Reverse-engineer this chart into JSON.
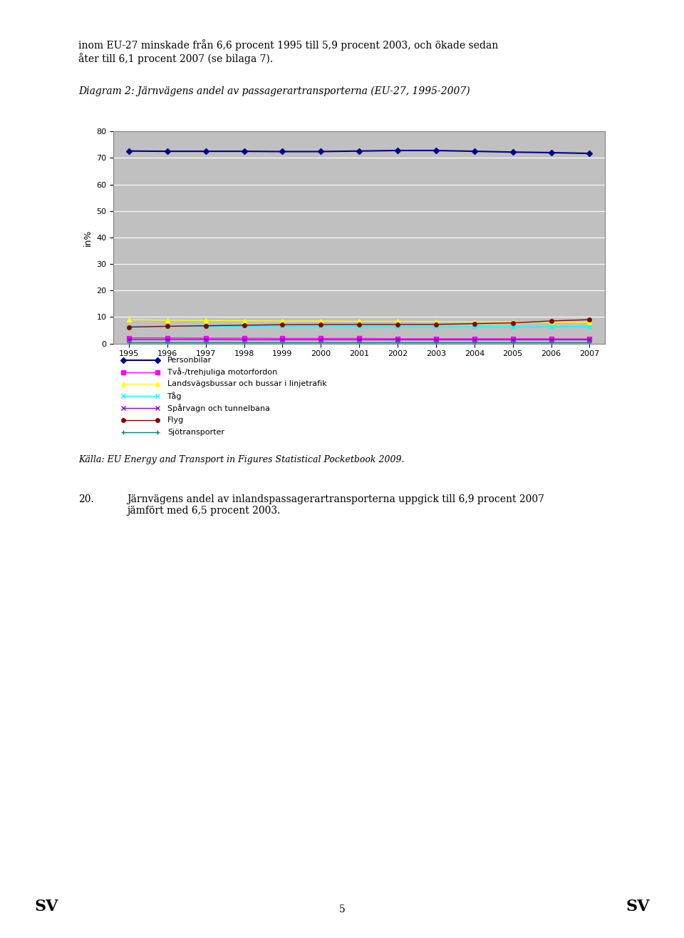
{
  "title": "Diagram 2: Järnvägens andel av passagerartransporterna (EU-27, 1995-2007)",
  "ylabel": "in%",
  "years": [
    1995,
    1996,
    1997,
    1998,
    1999,
    2000,
    2001,
    2002,
    2003,
    2004,
    2005,
    2006,
    2007
  ],
  "series": [
    {
      "name": "Personbilar",
      "color": "#00008B",
      "marker": "D",
      "markersize": 4,
      "linewidth": 1.5,
      "values": [
        72.6,
        72.5,
        72.5,
        72.5,
        72.4,
        72.4,
        72.6,
        72.8,
        72.8,
        72.5,
        72.2,
        72.0,
        71.7
      ]
    },
    {
      "name": "Två-/trehjuliga motorfordon",
      "color": "#FF00FF",
      "marker": "s",
      "markersize": 4,
      "linewidth": 1.0,
      "values": [
        2.1,
        2.1,
        2.0,
        2.0,
        1.9,
        1.9,
        1.9,
        1.8,
        1.8,
        1.8,
        1.8,
        1.8,
        1.7
      ]
    },
    {
      "name": "Landsvägsbussar och bussar i linjetrafik",
      "color": "#FFFF00",
      "marker": "^",
      "markersize": 4,
      "linewidth": 1.0,
      "values": [
        9.0,
        8.8,
        8.7,
        8.6,
        8.5,
        8.5,
        8.4,
        8.4,
        8.3,
        8.2,
        8.1,
        8.1,
        8.0
      ]
    },
    {
      "name": "Tåg",
      "color": "#00FFFF",
      "marker": "x",
      "markersize": 4,
      "linewidth": 1.0,
      "values": [
        6.4,
        6.4,
        6.5,
        6.5,
        6.5,
        6.5,
        6.4,
        6.3,
        6.3,
        6.3,
        6.3,
        6.3,
        6.4
      ]
    },
    {
      "name": "Spårvagn och tunnelbana",
      "color": "#9400D3",
      "marker": "x",
      "markersize": 4,
      "linewidth": 1.0,
      "values": [
        1.5,
        1.5,
        1.5,
        1.4,
        1.4,
        1.4,
        1.4,
        1.4,
        1.4,
        1.4,
        1.4,
        1.4,
        1.4
      ]
    },
    {
      "name": "Flyg",
      "color": "#8B0000",
      "marker": "o",
      "markersize": 4,
      "linewidth": 1.0,
      "values": [
        6.2,
        6.5,
        6.7,
        6.9,
        7.1,
        7.2,
        7.2,
        7.2,
        7.2,
        7.5,
        7.8,
        8.5,
        9.0
      ]
    },
    {
      "name": "Sjötransporter",
      "color": "#008080",
      "marker": "+",
      "markersize": 4,
      "linewidth": 1.0,
      "values": [
        0.5,
        0.5,
        0.5,
        0.5,
        0.5,
        0.5,
        0.5,
        0.5,
        0.5,
        0.5,
        0.5,
        0.5,
        0.5
      ]
    }
  ],
  "ylim": [
    0,
    80
  ],
  "yticks": [
    0,
    10,
    20,
    30,
    40,
    50,
    60,
    70,
    80
  ],
  "plot_bg_color": "#C0C0C0",
  "outer_bg_color": "#FFFFFF",
  "grid_color": "#FFFFFF",
  "border_color": "#808080",
  "caption": "Källa: EU Energy and Transport in Figures Statistical Pocketbook 2009.",
  "page_title_text": "inom EU-27 minskade från 6,6 procent 1995 till 5,9 procent 2003, och ökade sedan\nåter till 6,1 procent 2007 (se bilaga 7).",
  "bottom_text_num": "20.",
  "bottom_text_body": "Järnvägens andel av inlandspassagerartransporterna uppgick till 6,9 procent 2007\njämfört med 6,5 procent 2003.",
  "sv_text": "SV",
  "page_number": "5",
  "legend_entries": [
    {
      "name": "Personbilar",
      "color": "#00008B",
      "marker": "D",
      "linewidth": 1.5
    },
    {
      "name": "Två-/trehjuliga motorfordon",
      "color": "#FF00FF",
      "marker": "s",
      "linewidth": 1.0
    },
    {
      "name": "Landsvägsbussar och bussar i linjetrafik",
      "color": "#FFFF00",
      "marker": "^",
      "linewidth": 1.0
    },
    {
      "name": "Tåg",
      "color": "#00FFFF",
      "marker": "x",
      "linewidth": 1.0
    },
    {
      "name": "Spårvagn och tunnelbana",
      "color": "#9400D3",
      "marker": "x",
      "linewidth": 1.0
    },
    {
      "name": "Flyg",
      "color": "#8B0000",
      "marker": "o",
      "linewidth": 1.0
    },
    {
      "name": "Sjötransporter",
      "color": "#008080",
      "marker": "+",
      "linewidth": 1.0
    }
  ]
}
